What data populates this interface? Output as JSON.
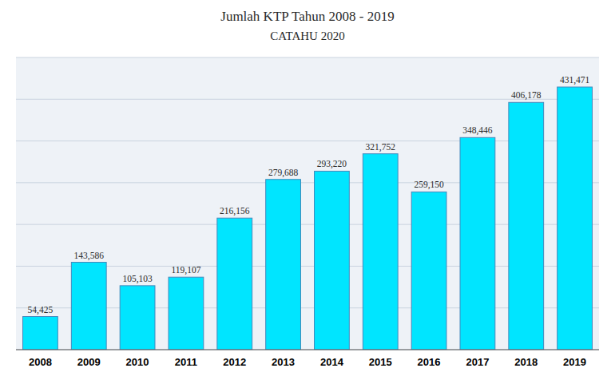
{
  "chart_data": {
    "type": "bar",
    "title": "Jumlah KTP Tahun 2008 - 2019",
    "subtitle": "CATAHU 2020",
    "categories": [
      "2008",
      "2009",
      "2010",
      "2011",
      "2012",
      "2013",
      "2014",
      "2015",
      "2016",
      "2017",
      "2018",
      "2019"
    ],
    "values": [
      54425,
      143586,
      105103,
      119107,
      216156,
      279688,
      293220,
      321752,
      259150,
      348446,
      406178,
      431471
    ],
    "value_labels": [
      "54,425",
      "143,586",
      "105,103",
      "119,107",
      "216,156",
      "279,688",
      "293,220",
      "321,752",
      "259,150",
      "348,446",
      "406,178",
      "431,471"
    ],
    "data_labels": true,
    "color": "#00E5FF",
    "ylim": [
      0,
      480000
    ],
    "yticks": [
      0,
      68571.42857142857,
      137142.85714285713,
      205714.2857142857,
      274285.7142857143,
      342857.14285714284,
      411428.5714285714,
      480000
    ],
    "grid": true,
    "tick_labels": "x"
  }
}
